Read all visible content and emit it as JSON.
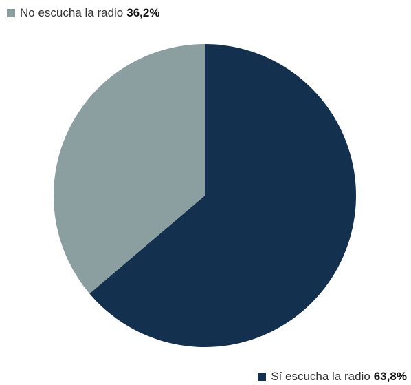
{
  "chart_data": {
    "type": "pie",
    "slices": [
      {
        "label": "Sí escucha la radio",
        "value": 63.8,
        "display": "63,8%",
        "color": "#14304f"
      },
      {
        "label": "No escucha la radio",
        "value": 36.2,
        "display": "36,2%",
        "color": "#8b9fa1"
      }
    ],
    "legend_placement": "split: top-left and bottom-right"
  },
  "legend": {
    "no": {
      "label": "No escucha la radio",
      "value": "36,2%"
    },
    "si": {
      "label": "Sí escucha la radio",
      "value": "63,8%"
    }
  }
}
